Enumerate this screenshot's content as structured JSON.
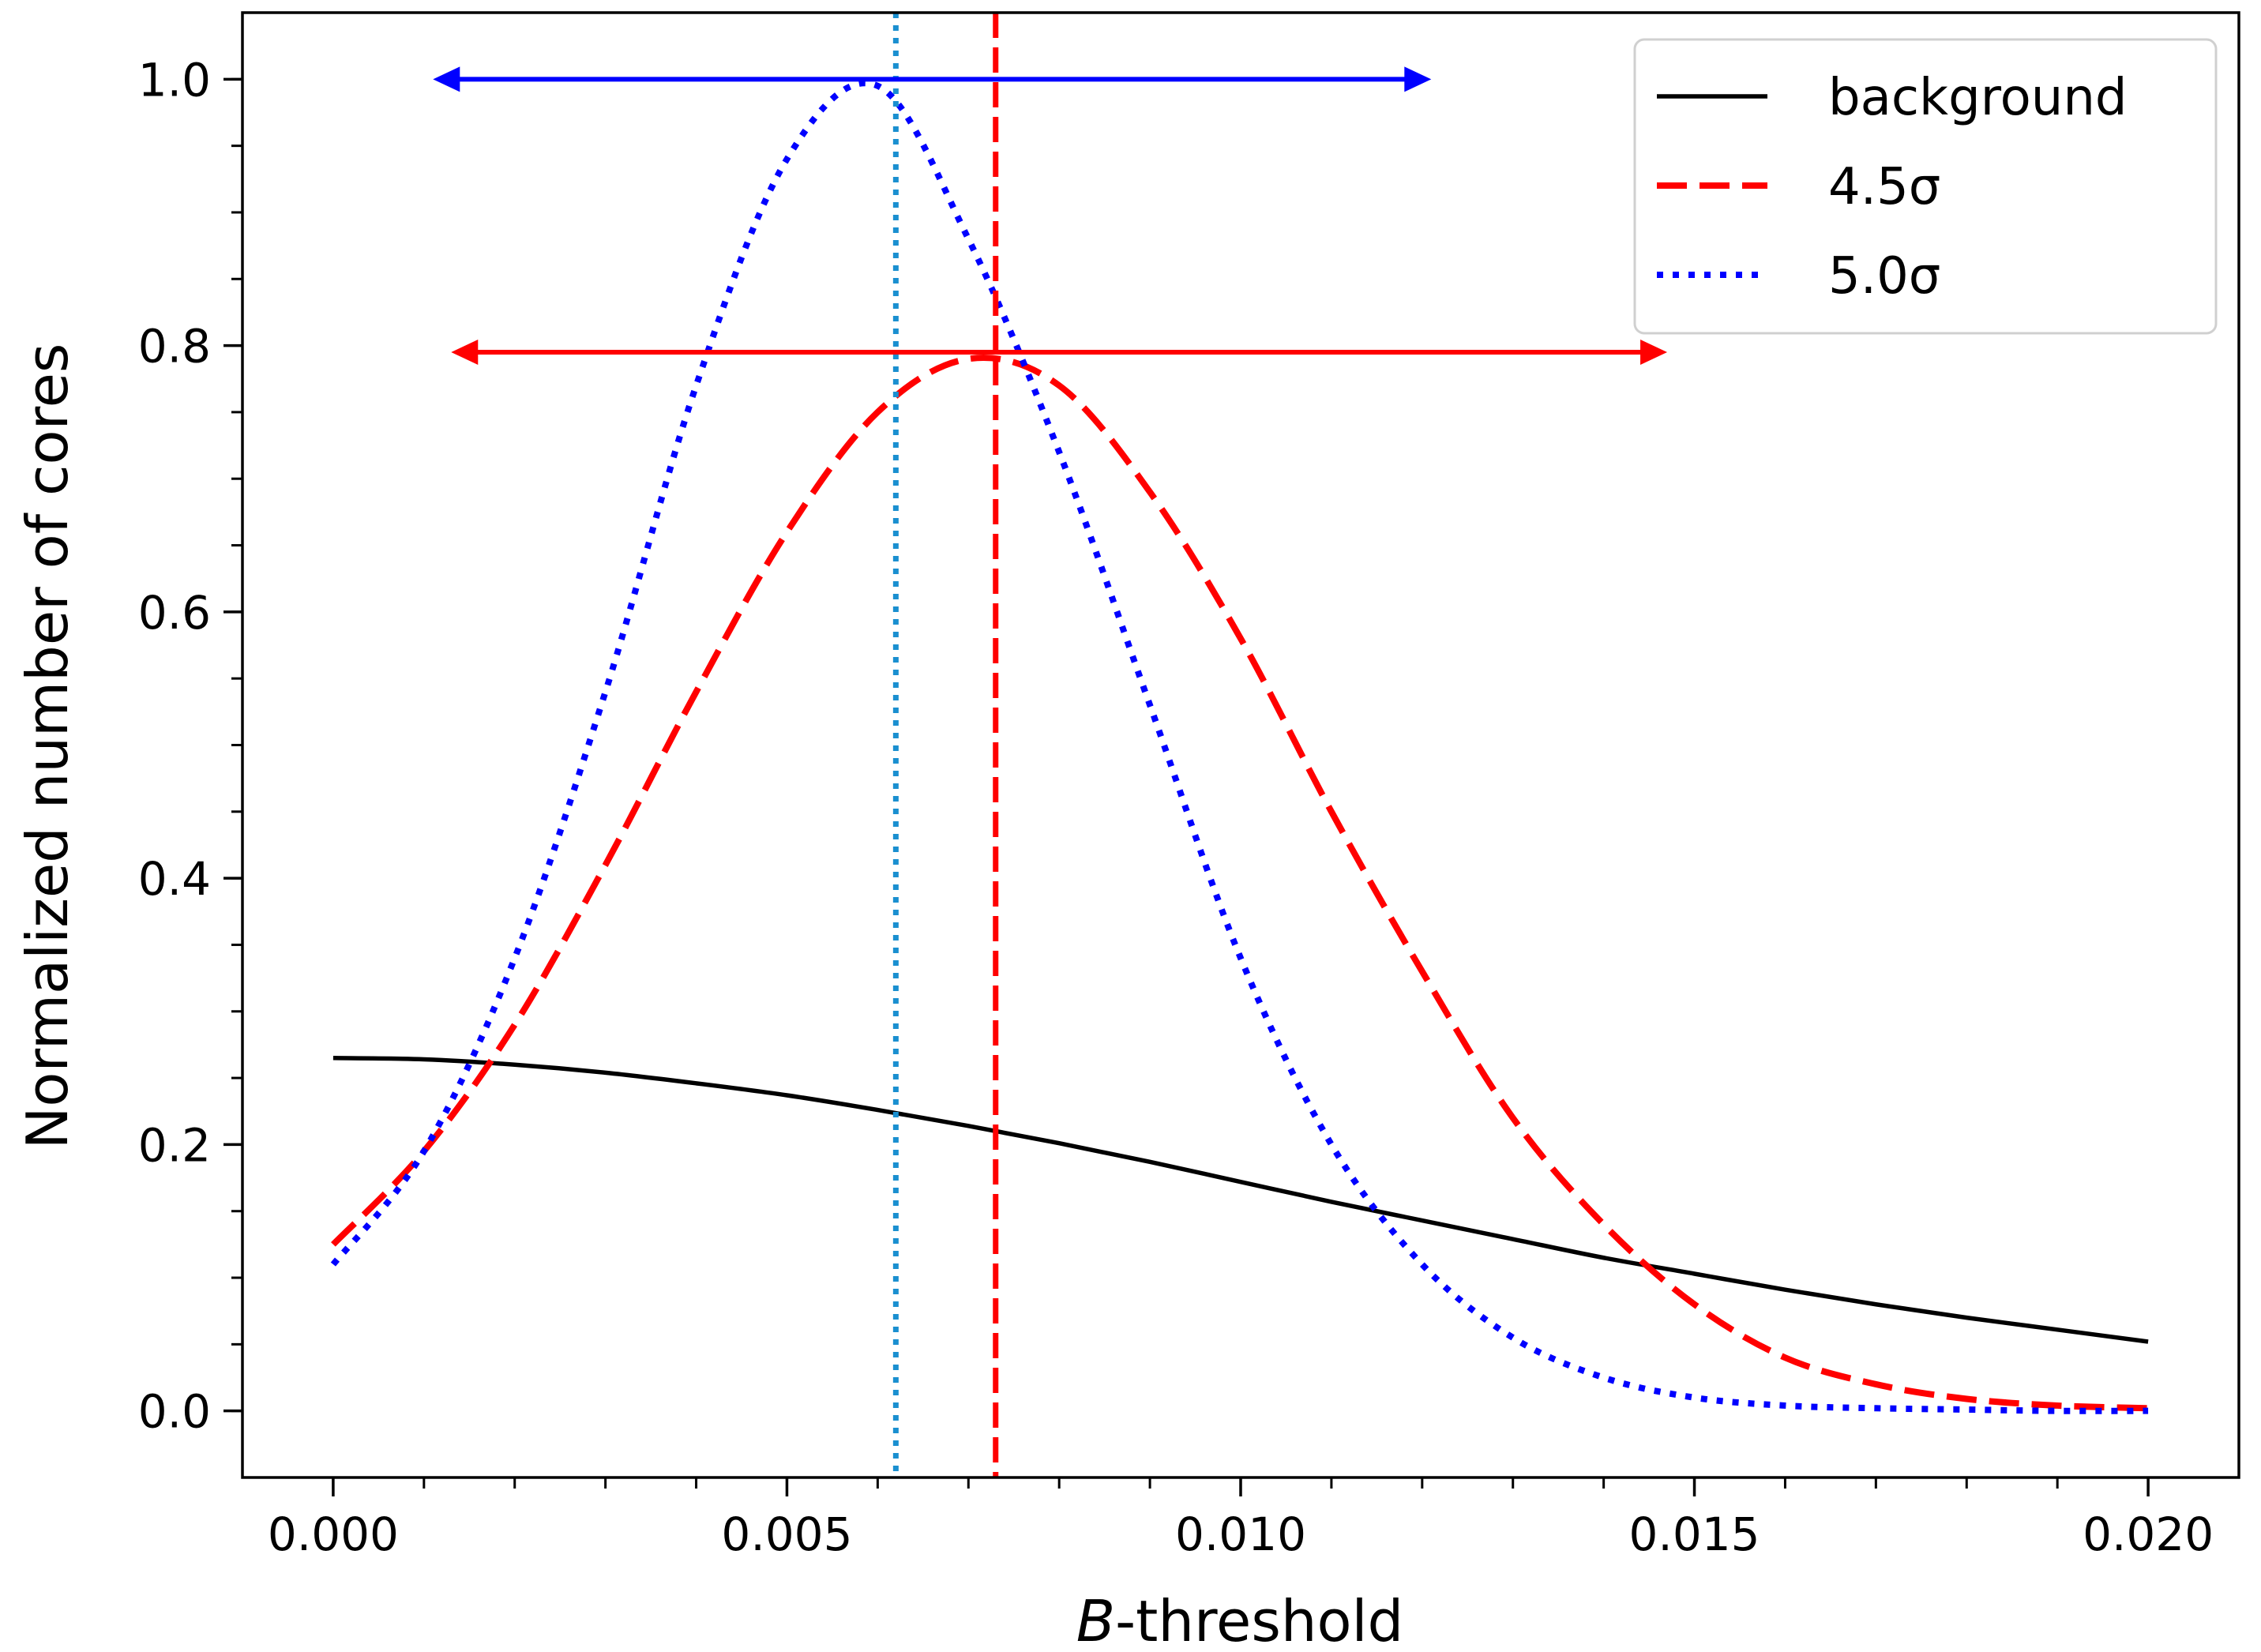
{
  "chart_data": {
    "type": "line",
    "title": "",
    "xlabel_italic": "B",
    "xlabel_rest": "-threshold",
    "ylabel": "Normalized number of cores",
    "xlim": [
      -0.001,
      0.021
    ],
    "ylim": [
      -0.05,
      1.05
    ],
    "x_ticks": [
      0.0,
      0.005,
      0.01,
      0.015,
      0.02
    ],
    "x_tick_labels": [
      "0.000",
      "0.005",
      "0.010",
      "0.015",
      "0.020"
    ],
    "y_ticks": [
      0.0,
      0.2,
      0.4,
      0.6,
      0.8,
      1.0
    ],
    "y_tick_labels": [
      "0.0",
      "0.2",
      "0.4",
      "0.6",
      "0.8",
      "1.0"
    ],
    "x_minor_step": 0.001,
    "y_minor_step": 0.05,
    "x_values": [
      0.0,
      0.001,
      0.002,
      0.003,
      0.004,
      0.005,
      0.006,
      0.007,
      0.008,
      0.009,
      0.01,
      0.011,
      0.012,
      0.013,
      0.014,
      0.015,
      0.016,
      0.017,
      0.018,
      0.019,
      0.02
    ],
    "series": [
      {
        "name": "background",
        "color": "#000000",
        "style": "solid",
        "values": [
          0.265,
          0.264,
          0.26,
          0.254,
          0.246,
          0.237,
          0.226,
          0.214,
          0.201,
          0.187,
          0.172,
          0.157,
          0.143,
          0.129,
          0.115,
          0.103,
          0.091,
          0.08,
          0.07,
          0.061,
          0.052
        ]
      },
      {
        "name": "4.5σ",
        "color": "#ff0000",
        "style": "dashed",
        "values": [
          0.125,
          0.195,
          0.29,
          0.41,
          0.54,
          0.66,
          0.75,
          0.79,
          0.77,
          0.69,
          0.58,
          0.45,
          0.33,
          0.22,
          0.14,
          0.08,
          0.04,
          0.02,
          0.009,
          0.004,
          0.002
        ]
      },
      {
        "name": "5.0σ",
        "color": "#0000ff",
        "style": "dotted",
        "values": [
          0.11,
          0.195,
          0.34,
          0.54,
          0.77,
          0.94,
          0.995,
          0.88,
          0.72,
          0.53,
          0.34,
          0.2,
          0.11,
          0.055,
          0.025,
          0.01,
          0.004,
          0.002,
          0.001,
          0.0,
          0.0
        ]
      }
    ],
    "vlines": [
      {
        "x": 0.0062,
        "color": "#1a8fd0",
        "style": "dotted"
      },
      {
        "x": 0.0073,
        "color": "#ff0000",
        "style": "dashed"
      }
    ],
    "arrows": [
      {
        "x_start": 0.0011,
        "x_end": 0.0121,
        "y": 1.0,
        "color": "#0000ff"
      },
      {
        "x_start": 0.0013,
        "x_end": 0.0147,
        "y": 0.795,
        "color": "#ff0000"
      }
    ],
    "legend_position": "top-right",
    "legend_labels": [
      "background",
      "4.5σ",
      "5.0σ"
    ]
  }
}
